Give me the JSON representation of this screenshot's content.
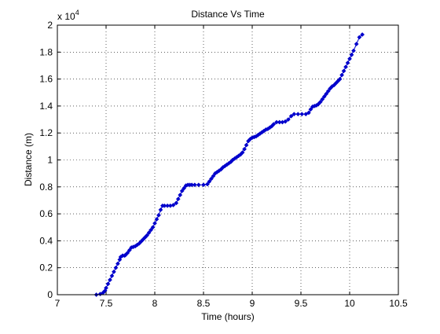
{
  "chart_data": {
    "type": "line",
    "title": "Distance Vs Time",
    "xlabel": "Time (hours)",
    "ylabel": "Distance (m)",
    "y_exponent_label": "x 10",
    "y_exponent_power": "4",
    "xlim": [
      7,
      10.5
    ],
    "ylim": [
      0,
      20000
    ],
    "x_ticks": [
      7,
      7.5,
      8,
      8.5,
      9,
      9.5,
      10,
      10.5
    ],
    "x_tick_labels": [
      "7",
      "7.5",
      "8",
      "8.5",
      "9",
      "9.5",
      "10",
      "10.5"
    ],
    "y_ticks": [
      0,
      2000,
      4000,
      6000,
      8000,
      10000,
      12000,
      14000,
      16000,
      18000,
      20000
    ],
    "y_tick_labels": [
      "0",
      "0.2",
      "0.4",
      "0.6",
      "0.8",
      "1",
      "1.2",
      "1.4",
      "1.6",
      "1.8",
      "2"
    ],
    "grid": true,
    "grid_style": "dotted",
    "marker": "diamond",
    "line_color": "#0000cc",
    "series": [
      {
        "x": [
          7.4,
          7.44,
          7.47,
          7.49,
          7.5,
          7.52,
          7.54,
          7.56,
          7.58,
          7.6,
          7.62,
          7.64,
          7.65,
          7.67,
          7.69,
          7.7,
          7.72,
          7.74,
          7.76,
          7.78,
          7.8,
          7.82,
          7.84,
          7.86,
          7.88,
          7.9,
          7.92,
          7.94,
          7.96,
          7.98,
          8.0,
          8.02,
          8.04,
          8.06,
          8.08,
          8.1,
          8.13,
          8.16,
          8.19,
          8.22,
          8.24,
          8.26,
          8.28,
          8.3,
          8.32,
          8.34,
          8.36,
          8.38,
          8.41,
          8.45,
          8.5,
          8.54,
          8.56,
          8.58,
          8.6,
          8.62,
          8.64,
          8.66,
          8.68,
          8.7,
          8.72,
          8.74,
          8.76,
          8.78,
          8.8,
          8.82,
          8.84,
          8.86,
          8.88,
          8.9,
          8.92,
          8.94,
          8.96,
          8.98,
          9.0,
          9.02,
          9.04,
          9.06,
          9.08,
          9.1,
          9.12,
          9.14,
          9.16,
          9.18,
          9.2,
          9.22,
          9.25,
          9.28,
          9.31,
          9.34,
          9.37,
          9.4,
          9.43,
          9.47,
          9.51,
          9.55,
          9.58,
          9.6,
          9.62,
          9.64,
          9.66,
          9.68,
          9.7,
          9.72,
          9.74,
          9.76,
          9.78,
          9.8,
          9.82,
          9.84,
          9.86,
          9.88,
          9.9,
          9.92,
          9.94,
          9.96,
          9.98,
          10.0,
          10.02,
          10.04,
          10.07,
          10.1,
          10.13
        ],
        "y": [
          0,
          50,
          150,
          300,
          500,
          800,
          1100,
          1400,
          1700,
          2000,
          2300,
          2600,
          2800,
          2900,
          2900,
          2950,
          3100,
          3300,
          3500,
          3550,
          3600,
          3700,
          3800,
          3950,
          4100,
          4250,
          4400,
          4600,
          4800,
          5000,
          5300,
          5600,
          5900,
          6300,
          6600,
          6600,
          6600,
          6600,
          6650,
          6800,
          7100,
          7400,
          7700,
          7900,
          8100,
          8150,
          8150,
          8150,
          8150,
          8150,
          8150,
          8200,
          8400,
          8600,
          8800,
          9000,
          9100,
          9200,
          9300,
          9450,
          9550,
          9650,
          9750,
          9850,
          10000,
          10100,
          10200,
          10300,
          10400,
          10550,
          10800,
          11100,
          11400,
          11550,
          11650,
          11700,
          11750,
          11850,
          11950,
          12050,
          12150,
          12250,
          12300,
          12400,
          12500,
          12650,
          12800,
          12800,
          12800,
          12850,
          13000,
          13250,
          13400,
          13400,
          13400,
          13400,
          13500,
          13750,
          13950,
          14000,
          14050,
          14150,
          14300,
          14500,
          14700,
          14900,
          15100,
          15300,
          15450,
          15550,
          15700,
          15850,
          16000,
          16300,
          16600,
          16900,
          17200,
          17500,
          17800,
          18100,
          18600,
          19100,
          19300
        ]
      }
    ]
  }
}
